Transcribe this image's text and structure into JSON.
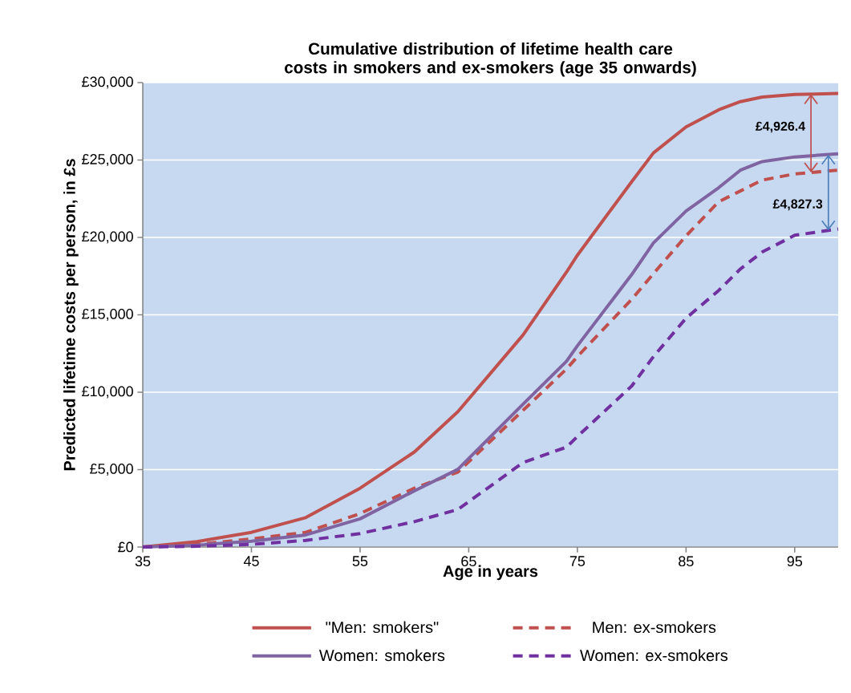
{
  "chart_data": {
    "type": "line",
    "title": "Cumulative distribution of lifetime health care costs in smokers and ex-smokers (age 35 onwards)",
    "xlabel": "Age in years",
    "ylabel": "Predicted lifetime costs per person, in £s",
    "x": [
      35,
      40,
      45,
      50,
      55,
      60,
      64,
      70,
      74,
      75,
      80,
      82,
      85,
      88,
      90,
      92,
      95,
      99
    ],
    "series": [
      {
        "name": "\"Men: smokers\"",
        "color": "#c0504d",
        "line_style": "solid",
        "values": [
          0,
          350,
          950,
          1900,
          3800,
          6140,
          8740,
          13700,
          17760,
          18850,
          23600,
          25460,
          27140,
          28240,
          28770,
          29070,
          29230,
          29300
        ]
      },
      {
        "name": "Men: ex-smokers",
        "color": "#c0504d",
        "line_style": "dashed",
        "values": [
          0,
          170,
          520,
          950,
          2160,
          3800,
          4840,
          8830,
          11500,
          12300,
          16000,
          17660,
          20100,
          22300,
          23000,
          23700,
          24100,
          24350
        ]
      },
      {
        "name": "Women: smokers",
        "color": "#8064a2",
        "line_style": "solid",
        "values": [
          0,
          120,
          380,
          780,
          1820,
          3630,
          5020,
          9230,
          12000,
          13000,
          17600,
          19640,
          21700,
          23210,
          24340,
          24900,
          25200,
          25400
        ]
      },
      {
        "name": "Women: ex-smokers",
        "color": "#7030a0",
        "line_style": "dashed",
        "values": [
          0,
          50,
          170,
          430,
          870,
          1640,
          2420,
          5460,
          6450,
          7140,
          10400,
          12300,
          14780,
          16570,
          17960,
          19050,
          20140,
          20540
        ]
      }
    ],
    "xlim": [
      35,
      99
    ],
    "ylim": [
      0,
      30000
    ],
    "xticks": [
      35,
      45,
      55,
      65,
      75,
      85,
      95
    ],
    "yticks": [
      {
        "value": 0,
        "label": "£0"
      },
      {
        "value": 5000,
        "label": "£5,000"
      },
      {
        "value": 10000,
        "label": "£10,000"
      },
      {
        "value": 15000,
        "label": "£15,000"
      },
      {
        "value": 20000,
        "label": "£20,000"
      },
      {
        "value": 25000,
        "label": "£25,000"
      },
      {
        "value": 30000,
        "label": "£30,000"
      }
    ],
    "annotations": [
      "£4,926.4",
      "£4,827.3"
    ],
    "grid": "y",
    "legend": "bottom"
  }
}
